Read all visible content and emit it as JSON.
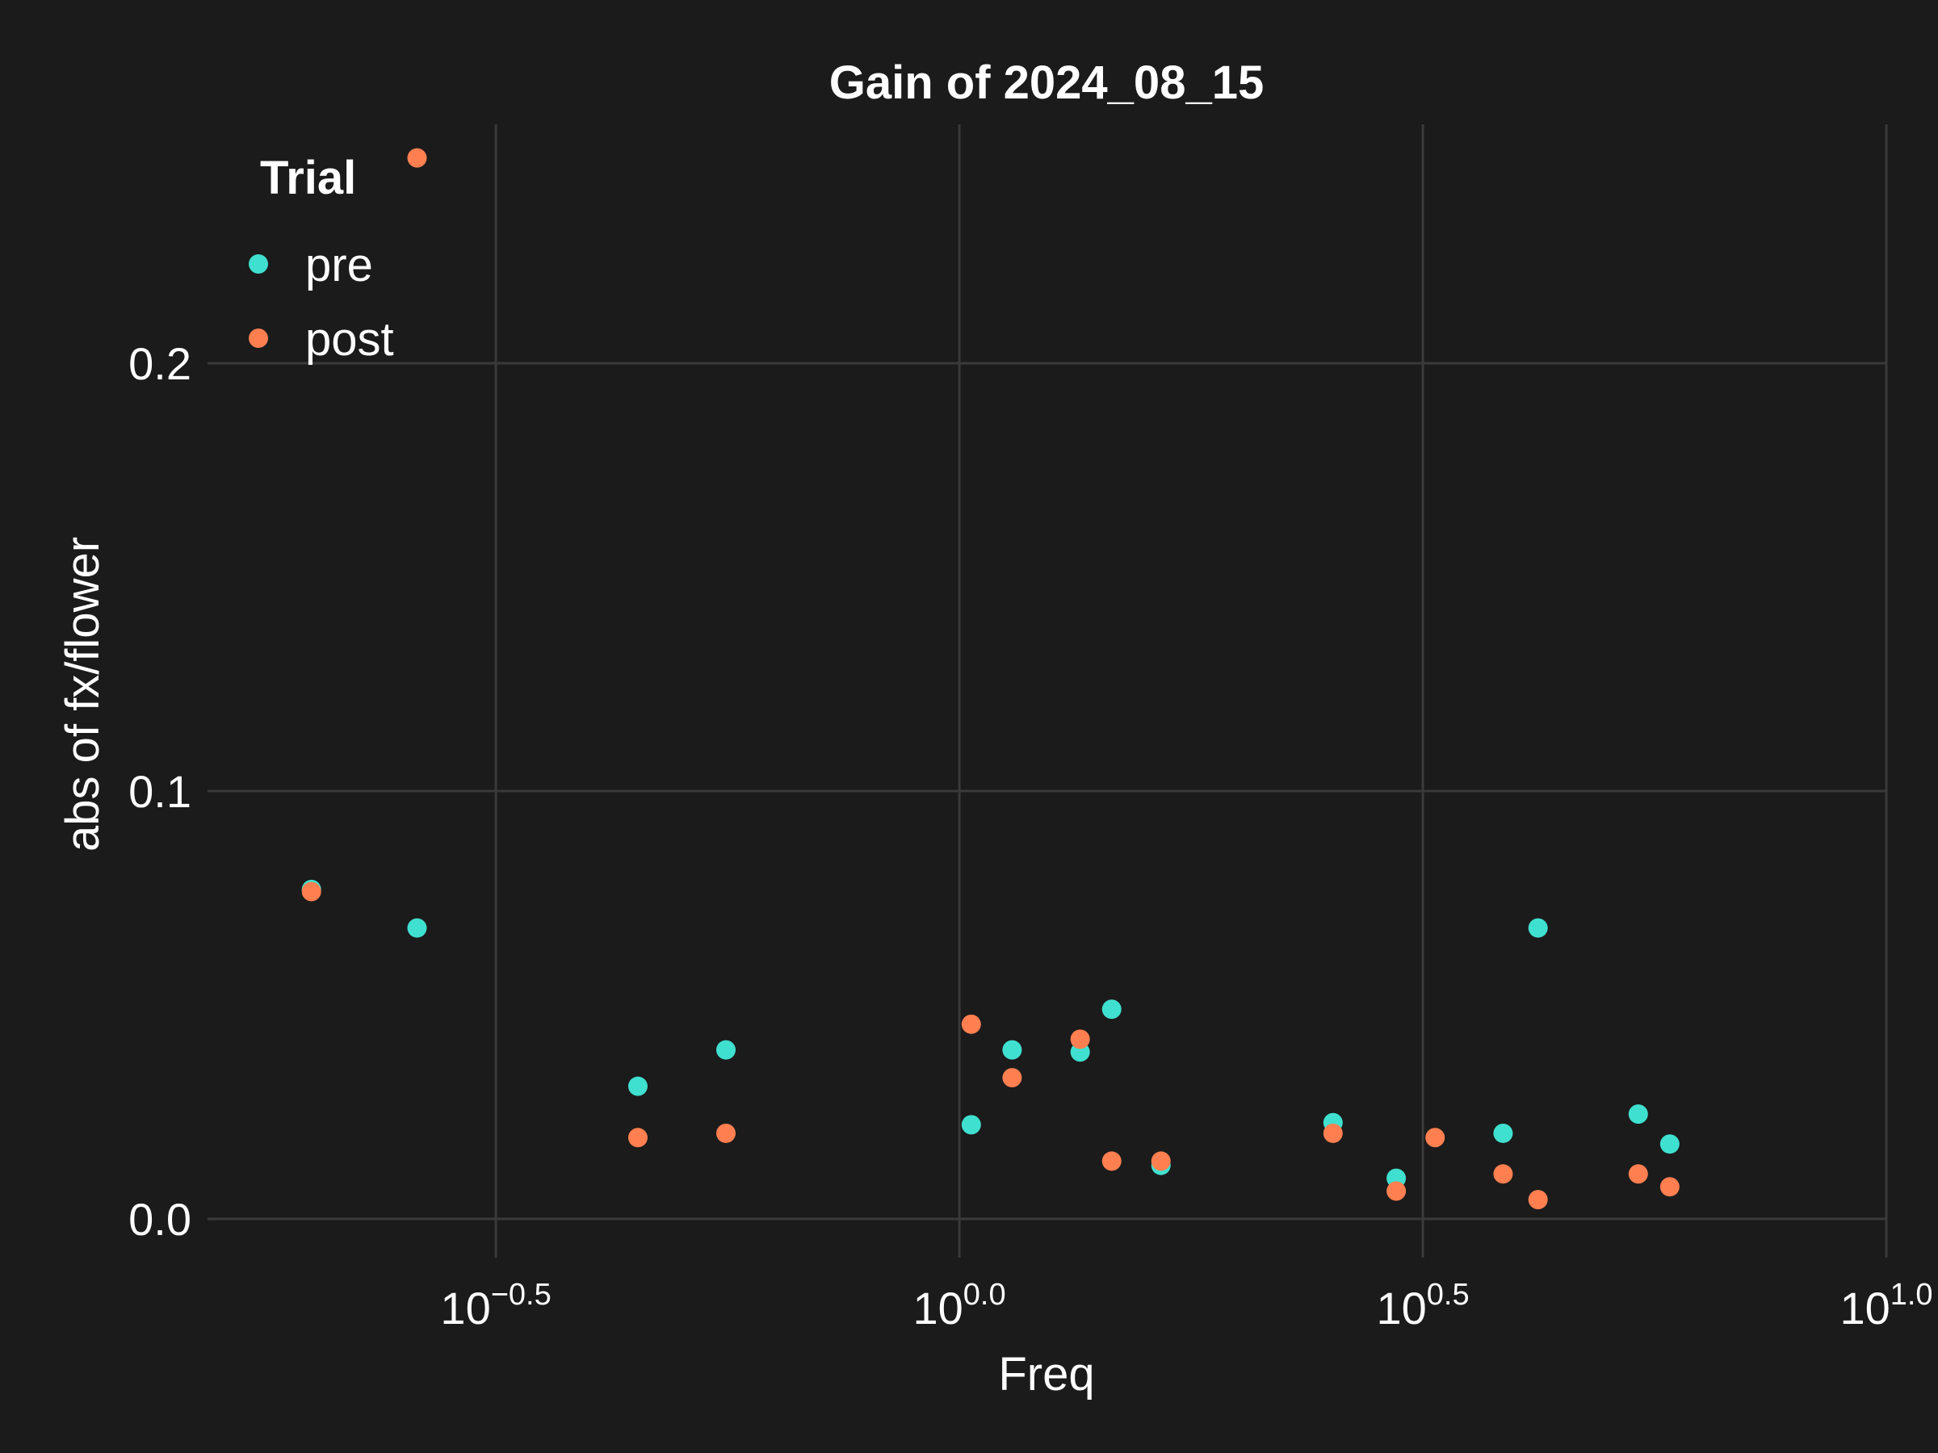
{
  "chart_data": {
    "type": "scatter",
    "title": "Gain of 2024_08_15",
    "xlabel": "Freq",
    "ylabel": "abs of fx/flower",
    "x_scale": "log10",
    "x_ticks": [
      {
        "value": 0.31623,
        "base": "10",
        "exp": "−0.5"
      },
      {
        "value": 1.0,
        "base": "10",
        "exp": "0.0"
      },
      {
        "value": 3.16228,
        "base": "10",
        "exp": "0.5"
      },
      {
        "value": 10.0,
        "base": "10",
        "exp": "1.0"
      }
    ],
    "y_ticks": [
      {
        "value": 0.0,
        "label": "0.0"
      },
      {
        "value": 0.1,
        "label": "0.1"
      },
      {
        "value": 0.2,
        "label": "0.2"
      }
    ],
    "xlim": [
      0.1545,
      10.0
    ],
    "ylim": [
      -0.0085,
      0.2585
    ],
    "grid": true,
    "legend": {
      "title": "Trial",
      "placement": "top-left"
    },
    "series": [
      {
        "name": "pre",
        "color": "#40e0d0",
        "points": [
          [
            0.2,
            0.077
          ],
          [
            0.26,
            0.068
          ],
          [
            0.45,
            0.031
          ],
          [
            0.56,
            0.0395
          ],
          [
            1.03,
            0.022
          ],
          [
            1.14,
            0.0395
          ],
          [
            1.35,
            0.039
          ],
          [
            1.46,
            0.049
          ],
          [
            1.65,
            0.0125
          ],
          [
            2.53,
            0.0225
          ],
          [
            2.96,
            0.0095
          ],
          [
            3.86,
            0.02
          ],
          [
            4.21,
            0.068
          ],
          [
            5.4,
            0.0245
          ],
          [
            5.84,
            0.0175
          ]
        ]
      },
      {
        "name": "post",
        "color": "#ff7f50",
        "points": [
          [
            0.2,
            0.0765
          ],
          [
            0.26,
            0.248
          ],
          [
            0.45,
            0.019
          ],
          [
            0.56,
            0.02
          ],
          [
            1.03,
            0.0455
          ],
          [
            1.14,
            0.033
          ],
          [
            1.35,
            0.042
          ],
          [
            1.46,
            0.0135
          ],
          [
            1.65,
            0.0135
          ],
          [
            2.53,
            0.02
          ],
          [
            2.96,
            0.0065
          ],
          [
            3.26,
            0.019
          ],
          [
            3.86,
            0.0105
          ],
          [
            4.21,
            0.0045
          ],
          [
            5.4,
            0.0105
          ],
          [
            5.84,
            0.0075
          ]
        ]
      }
    ]
  }
}
